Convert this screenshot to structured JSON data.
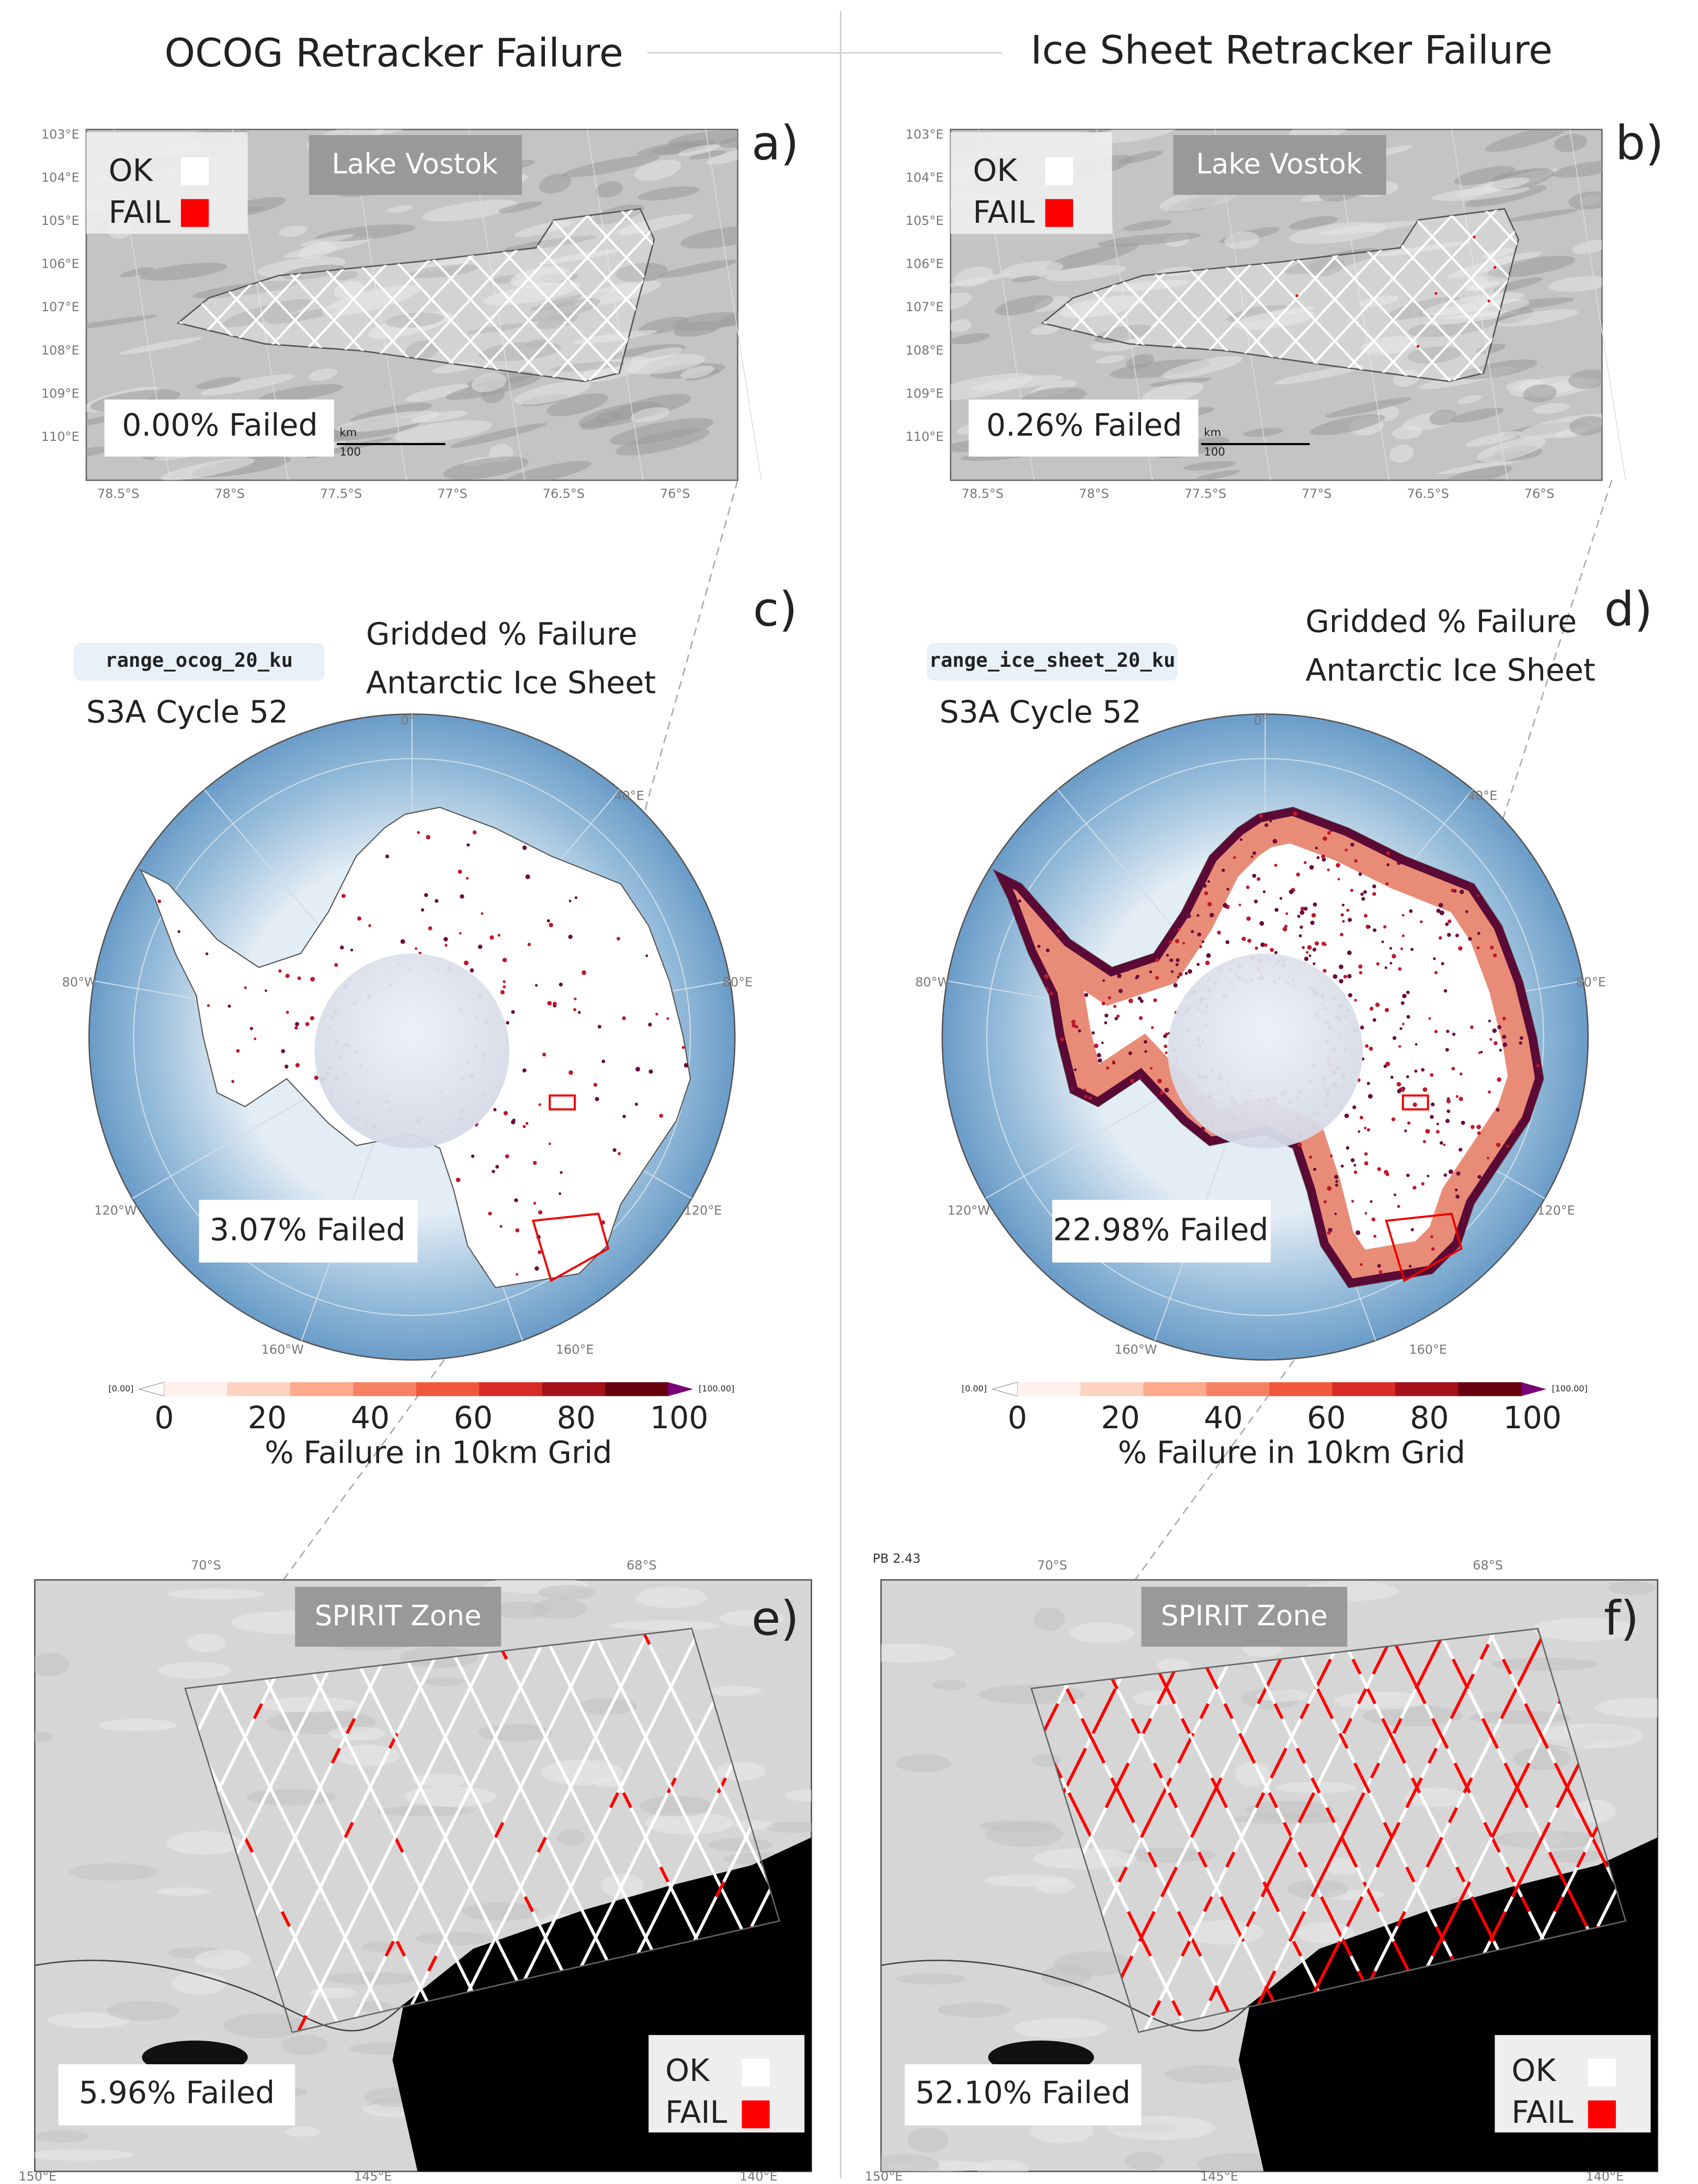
{
  "header": {
    "left_title": "OCOG Retracker Failure",
    "right_title": "Ice Sheet Retracker Failure"
  },
  "vostok_panels": [
    {
      "label": "a)",
      "place": "Lake Vostok",
      "legend": {
        "ok": "OK",
        "fail": "FAIL"
      },
      "failed": "0.00% Failed",
      "scale_unit": "km",
      "scale_length": "100",
      "ticks_left": [
        "103°E",
        "104°E",
        "105°E",
        "106°E",
        "107°E",
        "108°E",
        "109°E",
        "110°E"
      ],
      "ticks_bottom": [
        "78.5°S",
        "78°S",
        "77.5°S",
        "77°S",
        "76.5°S",
        "76°S"
      ]
    },
    {
      "label": "b)",
      "place": "Lake Vostok",
      "legend": {
        "ok": "OK",
        "fail": "FAIL"
      },
      "failed": "0.26% Failed",
      "scale_unit": "km",
      "scale_length": "100",
      "ticks_left": [
        "103°E",
        "104°E",
        "105°E",
        "106°E",
        "107°E",
        "108°E",
        "109°E",
        "110°E"
      ],
      "ticks_bottom": [
        "78.5°S",
        "78°S",
        "77.5°S",
        "77°S",
        "76.5°S",
        "76°S"
      ]
    }
  ],
  "polar_panels": [
    {
      "label": "c)",
      "variable": "range_ocog_20_ku",
      "cycle": "S3A Cycle 52",
      "title_line1": "Gridded % Failure",
      "title_line2": "Antarctic Ice Sheet",
      "failed": "3.07% Failed",
      "graticule": [
        "0°",
        "40°E",
        "80°E",
        "120°E",
        "160°E",
        "160°W",
        "120°W",
        "80°W"
      ],
      "colorbar": {
        "min_label": "[0.00]",
        "max_label": "[100.00]",
        "ticks": [
          0,
          20,
          40,
          60,
          80,
          100
        ],
        "label": "% Failure in 10km Grid"
      }
    },
    {
      "label": "d)",
      "variable": "range_ice_sheet_20_ku",
      "cycle": "S3A Cycle 52",
      "title_line1": "Gridded % Failure",
      "title_line2": "Antarctic Ice Sheet",
      "failed": "22.98% Failed",
      "graticule": [
        "0°",
        "40°E",
        "80°E",
        "120°E",
        "160°E",
        "160°W",
        "120°W",
        "80°W"
      ],
      "colorbar": {
        "min_label": "[0.00]",
        "max_label": "[100.00]",
        "ticks": [
          0,
          20,
          40,
          60,
          80,
          100
        ],
        "label": "% Failure in 10km Grid"
      }
    }
  ],
  "spirit_panels": [
    {
      "label": "e)",
      "zone": "SPIRIT Zone",
      "failed": "5.96% Failed",
      "legend": {
        "ok": "OK",
        "fail": "FAIL"
      },
      "ticks_top": [
        "70°S",
        "68°S"
      ],
      "ticks_bottom": [
        "150°E",
        "145°E",
        "140°E"
      ]
    },
    {
      "label": "f)",
      "corner_note": "PB 2.43",
      "zone": "SPIRIT Zone",
      "failed": "52.10% Failed",
      "legend": {
        "ok": "OK",
        "fail": "FAIL"
      },
      "ticks_top": [
        "70°S",
        "68°S"
      ],
      "ticks_bottom": [
        "150°E",
        "145°E",
        "140°E"
      ]
    }
  ]
}
